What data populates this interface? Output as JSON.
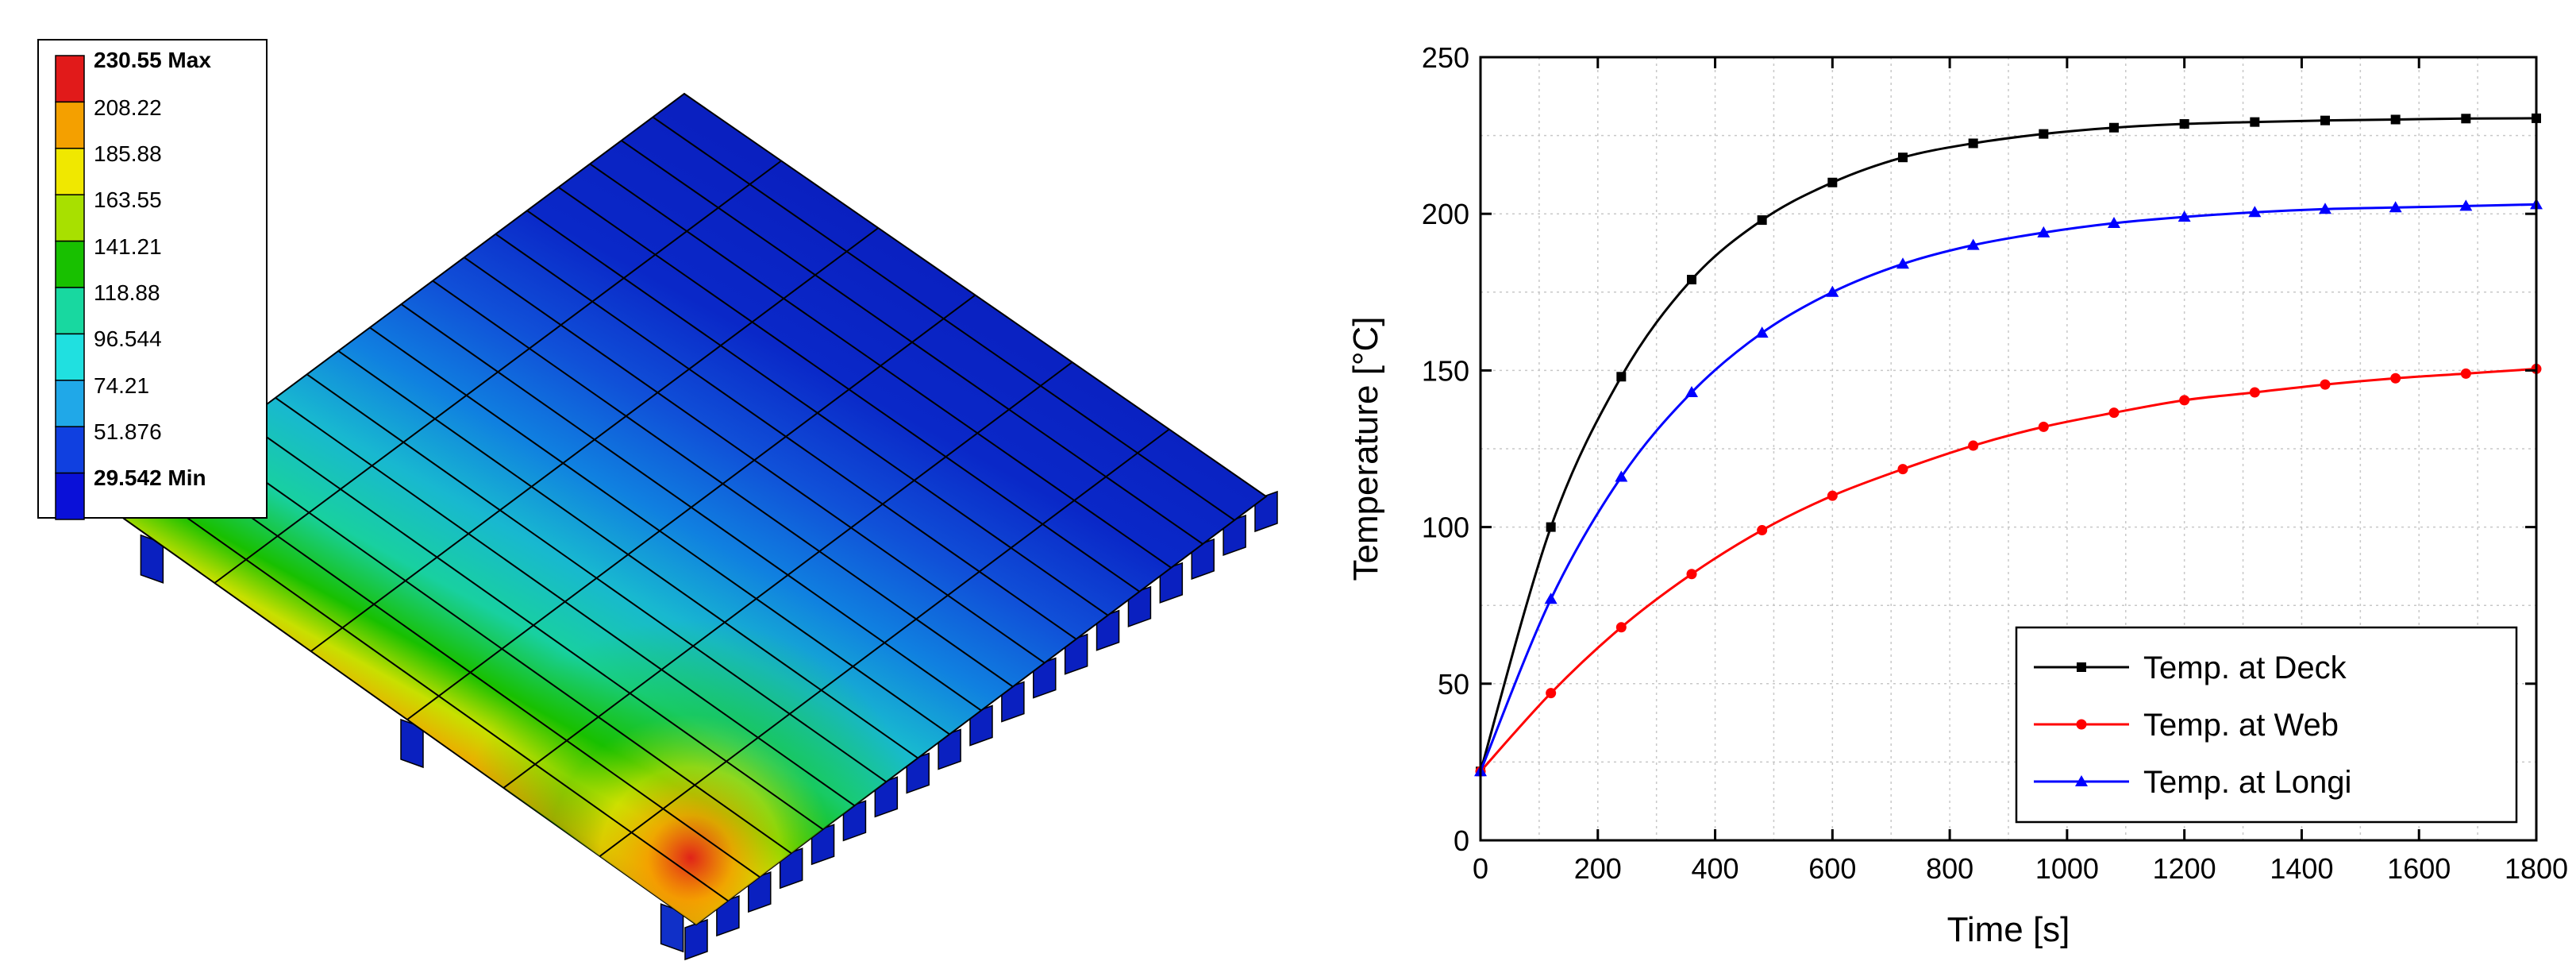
{
  "contour_legend": {
    "max_label": "230.55 Max",
    "min_label": "29.542 Min",
    "levels": [
      "230.55 Max",
      "208.22",
      "185.88",
      "163.55",
      "141.21",
      "118.88",
      "96.544",
      "74.21",
      "51.876",
      "29.542 Min"
    ],
    "colors": [
      "#e11a1a",
      "#f4a000",
      "#f0e800",
      "#a8e000",
      "#18c000",
      "#18d8a0",
      "#20e0e0",
      "#20a8e8",
      "#1040e0",
      "#0a10d8"
    ]
  },
  "colors": {
    "deck": "#000000",
    "web": "#ff0000",
    "longi": "#0000ff"
  },
  "chart_data": {
    "type": "line",
    "xlabel": "Time [s]",
    "ylabel": "Temperature [°C]",
    "xlim": [
      0,
      1800
    ],
    "ylim": [
      0,
      250
    ],
    "xticks": [
      0,
      200,
      400,
      600,
      800,
      1000,
      1200,
      1400,
      1600,
      1800
    ],
    "yticks": [
      0,
      50,
      100,
      150,
      200,
      250
    ],
    "grid": true,
    "legend_position": "bottom-right",
    "x": [
      0,
      120,
      240,
      360,
      480,
      600,
      720,
      840,
      960,
      1080,
      1200,
      1320,
      1440,
      1560,
      1680,
      1800
    ],
    "series": [
      {
        "name": "Temp. at Deck",
        "marker": "square",
        "color": "#000000",
        "values": [
          22,
          100,
          148,
          179,
          198,
          210,
          218,
          222.5,
          225.5,
          227.5,
          228.7,
          229.3,
          229.8,
          230.1,
          230.4,
          230.5
        ]
      },
      {
        "name": "Temp. at Web",
        "marker": "circle",
        "color": "#ff0000",
        "values": [
          22,
          47,
          68,
          85,
          99,
          110,
          118.5,
          126,
          132,
          136.5,
          140.5,
          143,
          145.5,
          147.5,
          149,
          150.5
        ]
      },
      {
        "name": "Temp. at Longi",
        "marker": "triangle",
        "color": "#0000ff",
        "values": [
          22,
          77,
          116,
          143,
          162,
          175,
          184,
          190,
          194,
          197,
          199,
          200.5,
          201.5,
          202,
          202.5,
          203
        ]
      }
    ]
  }
}
